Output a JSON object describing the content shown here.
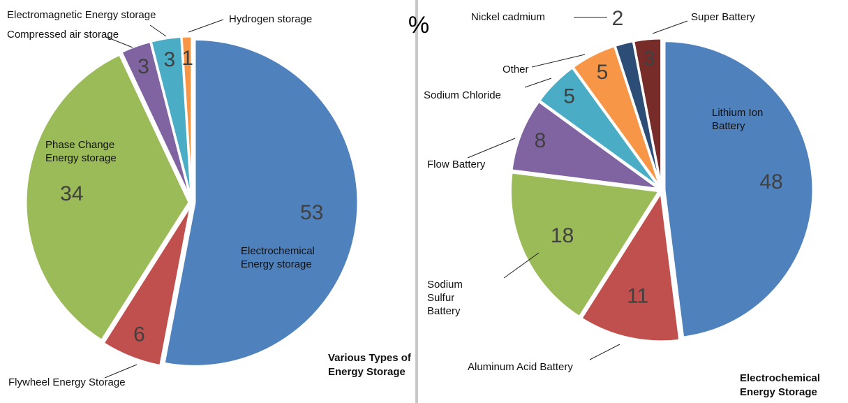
{
  "unit_label": "%",
  "chart_data": [
    {
      "type": "pie",
      "title": "Various Types of Energy Storage",
      "categories": [
        "Electrochemical Energy storage",
        "Flywheel Energy Storage",
        "Phase Change Energy storage",
        "Compressed air storage",
        "Electromagnetic Energy storage",
        "Hydrogen storage"
      ],
      "values": [
        53,
        6,
        34,
        3,
        3,
        1
      ],
      "colors": [
        "#4f81bd",
        "#c0504d",
        "#9bbb59",
        "#8064a2",
        "#4bacc6",
        "#f79646"
      ]
    },
    {
      "type": "pie",
      "title": "Electrochemical Energy Storage",
      "categories": [
        "Lithium Ion Battery",
        "Aluminum Acid Battery",
        "Sodium Sulfur Battery",
        "Flow Battery",
        "Sodium Chloride",
        "Other",
        "Nickel cadmium",
        "Super Battery"
      ],
      "values": [
        48,
        11,
        18,
        8,
        5,
        5,
        2,
        3
      ],
      "colors": [
        "#4f81bd",
        "#c0504d",
        "#9bbb59",
        "#8064a2",
        "#4bacc6",
        "#f79646",
        "#2c4d75",
        "#772c2a"
      ]
    }
  ]
}
